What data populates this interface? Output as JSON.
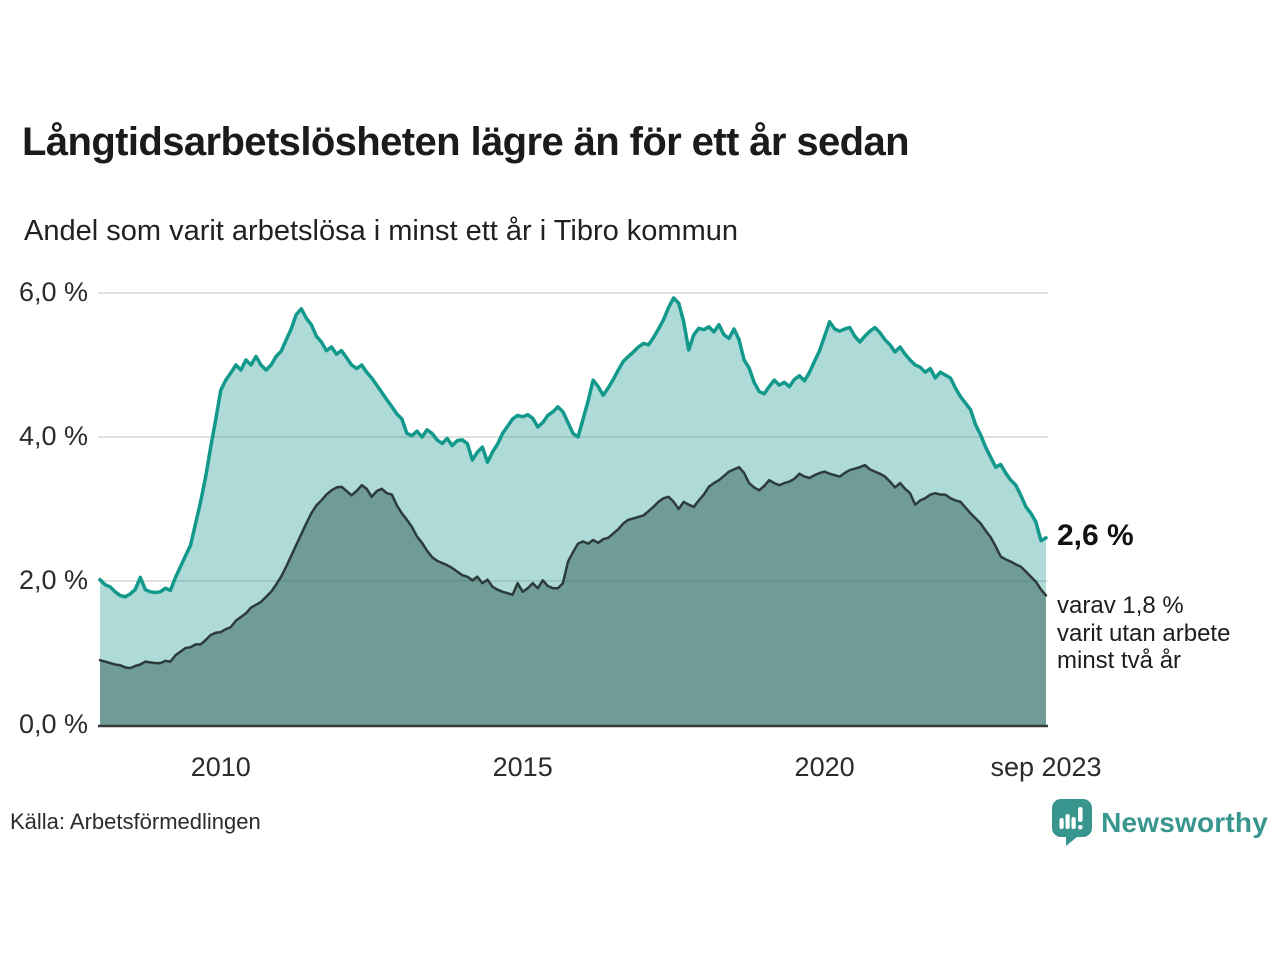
{
  "title": "Långtidsarbetslösheten lägre än för ett år sedan",
  "subtitle": "Andel som varit arbetslösa i minst ett år i Tibro kommun",
  "source": "Källa: Arbetsförmedlingen",
  "brand": {
    "name": "Newsworthy",
    "color": "#38968f"
  },
  "annotation": {
    "latest_total": "2,6 %",
    "note_lines": [
      "varav 1,8 %",
      "varit utan arbete",
      "minst två år"
    ]
  },
  "chart_data": {
    "type": "area",
    "title": "Långtidsarbetslösheten lägre än för ett år sedan",
    "subtitle": "Andel som varit arbetslösa i minst ett år i Tibro kommun",
    "unit": "%",
    "x_start": "jan 2008",
    "x_end": "sep 2023",
    "x_ticks": [
      "2010",
      "2015",
      "2020",
      "sep 2023"
    ],
    "y_ticks": [
      "0,0 %",
      "2,0 %",
      "4,0 %",
      "6,0 %"
    ],
    "y_tick_values": [
      0,
      2,
      4,
      6
    ],
    "y_grid_values": [
      2,
      4,
      6
    ],
    "ylim": [
      0,
      6
    ],
    "grid": true,
    "legend": "none",
    "colors": {
      "grid": "#e0e0e0",
      "axis": "#383838"
    },
    "series": [
      {
        "name": "Arbetslösa minst ett år",
        "line_color": "#12998b",
        "fill_color": "rgba(23,153,139,0.35)",
        "line_width": 3.5,
        "last_value_label": "2,6 %",
        "values": [
          2.02,
          1.95,
          1.92,
          1.85,
          1.8,
          1.78,
          1.82,
          1.88,
          2.05,
          1.88,
          1.85,
          1.84,
          1.85,
          1.9,
          1.87,
          2.05,
          2.2,
          2.35,
          2.5,
          2.8,
          3.1,
          3.45,
          3.86,
          4.24,
          4.65,
          4.79,
          4.89,
          5.0,
          4.93,
          5.07,
          5.0,
          5.12,
          5.0,
          4.93,
          5.0,
          5.12,
          5.19,
          5.35,
          5.5,
          5.7,
          5.78,
          5.65,
          5.56,
          5.4,
          5.32,
          5.2,
          5.25,
          5.15,
          5.2,
          5.1,
          5.0,
          4.95,
          5.0,
          4.9,
          4.82,
          4.72,
          4.62,
          4.52,
          4.42,
          4.32,
          4.25,
          4.05,
          4.02,
          4.08,
          4.0,
          4.1,
          4.05,
          3.96,
          3.91,
          3.98,
          3.88,
          3.95,
          3.96,
          3.91,
          3.68,
          3.79,
          3.86,
          3.65,
          3.79,
          3.9,
          4.05,
          4.15,
          4.25,
          4.3,
          4.28,
          4.31,
          4.26,
          4.14,
          4.2,
          4.3,
          4.35,
          4.42,
          4.35,
          4.2,
          4.05,
          4.0,
          4.25,
          4.5,
          4.79,
          4.7,
          4.58,
          4.68,
          4.8,
          4.93,
          5.05,
          5.12,
          5.18,
          5.25,
          5.3,
          5.28,
          5.38,
          5.5,
          5.63,
          5.8,
          5.93,
          5.86,
          5.6,
          5.21,
          5.42,
          5.51,
          5.49,
          5.53,
          5.46,
          5.56,
          5.42,
          5.37,
          5.5,
          5.35,
          5.07,
          4.96,
          4.76,
          4.63,
          4.6,
          4.7,
          4.79,
          4.72,
          4.76,
          4.7,
          4.8,
          4.85,
          4.78,
          4.9,
          5.05,
          5.2,
          5.4,
          5.6,
          5.5,
          5.47,
          5.5,
          5.52,
          5.4,
          5.32,
          5.4,
          5.47,
          5.52,
          5.45,
          5.35,
          5.28,
          5.18,
          5.25,
          5.15,
          5.07,
          5.0,
          4.97,
          4.9,
          4.95,
          4.82,
          4.9,
          4.86,
          4.82,
          4.68,
          4.56,
          4.47,
          4.38,
          4.17,
          4.03,
          3.86,
          3.72,
          3.58,
          3.62,
          3.5,
          3.4,
          3.33,
          3.19,
          3.03,
          2.94,
          2.82,
          2.56,
          2.6
        ]
      },
      {
        "name": "Varav utan arbete minst två år",
        "line_color": "#2d3c3a",
        "fill_color": "rgba(36,82,76,0.46)",
        "line_width": 2.5,
        "last_value_label": "1,8 %",
        "values": [
          0.9,
          0.88,
          0.86,
          0.84,
          0.83,
          0.8,
          0.79,
          0.82,
          0.84,
          0.88,
          0.87,
          0.86,
          0.86,
          0.89,
          0.88,
          0.97,
          1.02,
          1.07,
          1.08,
          1.12,
          1.12,
          1.18,
          1.25,
          1.28,
          1.29,
          1.33,
          1.36,
          1.45,
          1.5,
          1.55,
          1.63,
          1.67,
          1.71,
          1.78,
          1.85,
          1.95,
          2.06,
          2.2,
          2.35,
          2.5,
          2.65,
          2.8,
          2.94,
          3.05,
          3.12,
          3.2,
          3.26,
          3.3,
          3.31,
          3.25,
          3.19,
          3.25,
          3.33,
          3.28,
          3.17,
          3.25,
          3.28,
          3.22,
          3.2,
          3.05,
          2.94,
          2.85,
          2.75,
          2.62,
          2.53,
          2.42,
          2.33,
          2.28,
          2.25,
          2.22,
          2.18,
          2.13,
          2.08,
          2.06,
          2.01,
          2.06,
          1.97,
          2.02,
          1.92,
          1.88,
          1.85,
          1.83,
          1.81,
          1.97,
          1.85,
          1.9,
          1.97,
          1.9,
          2.01,
          1.93,
          1.9,
          1.9,
          1.97,
          2.27,
          2.4,
          2.52,
          2.55,
          2.52,
          2.57,
          2.53,
          2.58,
          2.6,
          2.66,
          2.72,
          2.8,
          2.85,
          2.87,
          2.89,
          2.91,
          2.97,
          3.03,
          3.1,
          3.15,
          3.17,
          3.1,
          3.0,
          3.1,
          3.06,
          3.03,
          3.12,
          3.2,
          3.31,
          3.36,
          3.4,
          3.46,
          3.52,
          3.55,
          3.58,
          3.5,
          3.36,
          3.3,
          3.26,
          3.32,
          3.4,
          3.36,
          3.33,
          3.36,
          3.38,
          3.42,
          3.49,
          3.45,
          3.43,
          3.47,
          3.5,
          3.52,
          3.49,
          3.47,
          3.45,
          3.5,
          3.54,
          3.56,
          3.58,
          3.61,
          3.55,
          3.52,
          3.49,
          3.45,
          3.38,
          3.3,
          3.36,
          3.28,
          3.22,
          3.06,
          3.12,
          3.15,
          3.2,
          3.22,
          3.2,
          3.2,
          3.15,
          3.12,
          3.1,
          3.02,
          2.94,
          2.87,
          2.8,
          2.7,
          2.61,
          2.48,
          2.34,
          2.3,
          2.27,
          2.23,
          2.2,
          2.13,
          2.06,
          1.99,
          1.88,
          1.8
        ]
      }
    ]
  }
}
